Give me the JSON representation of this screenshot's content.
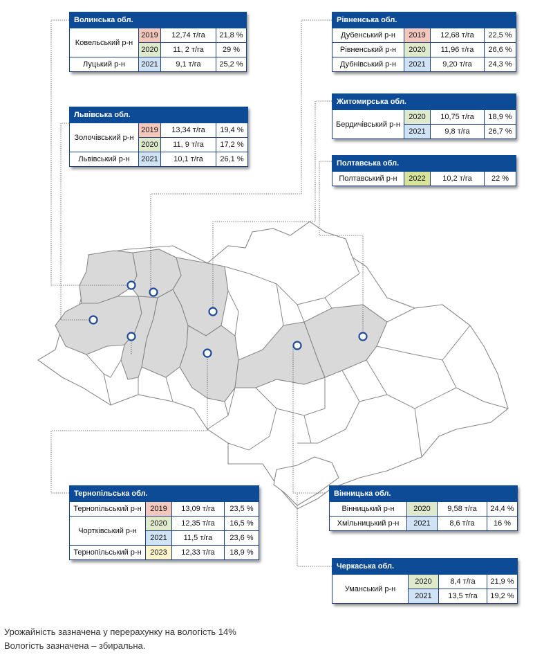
{
  "map": {
    "colors": {
      "highlight": "#d9d9d9",
      "other": "#ffffff",
      "border": "#888888",
      "marker": "#1e4b9a"
    }
  },
  "cards": {
    "volyn": {
      "title": "Волинська обл.",
      "rows": [
        {
          "district": "Ковельський р-н",
          "year": "2019",
          "yield": "12,74 т/га",
          "moisture": "21,8 %"
        },
        {
          "district": "",
          "year": "2020",
          "yield": "11, 2 т/га",
          "moisture": "29 %"
        },
        {
          "district": "Луцький р-н",
          "year": "2021",
          "yield": "9,1 т/га",
          "moisture": "25,2 %"
        }
      ]
    },
    "lviv": {
      "title": "Львівська обл.",
      "rows": [
        {
          "district": "Золочівський р-н",
          "year": "2019",
          "yield": "13,34 т/га",
          "moisture": "19,4 %"
        },
        {
          "district": "",
          "year": "2020",
          "yield": "11, 9 т/га",
          "moisture": "17,2 %"
        },
        {
          "district": "Львівський р-н",
          "year": "2021",
          "yield": "10,1 т/га",
          "moisture": "26,1 %"
        }
      ]
    },
    "rivne": {
      "title": "Рівненська обл.",
      "rows": [
        {
          "district": "Дубенський р-н",
          "year": "2019",
          "yield": "12,68 т/га",
          "moisture": "22,5 %"
        },
        {
          "district": "Рівненський р-н",
          "year": "2020",
          "yield": "11,96 т/га",
          "moisture": "26,6 %"
        },
        {
          "district": "Дубнівський р-н",
          "year": "2021",
          "yield": "9,20 т/га",
          "moisture": "24,3 %"
        }
      ]
    },
    "zhytomyr": {
      "title": "Житомирська обл.",
      "rows": [
        {
          "district": "Бердичівський р-н",
          "year": "2020",
          "yield": "10,75 т/га",
          "moisture": "18,9 %"
        },
        {
          "district": "",
          "year": "2021",
          "yield": "9,8 т/га",
          "moisture": "26,7 %"
        }
      ]
    },
    "poltava": {
      "title": "Полтавська обл.",
      "rows": [
        {
          "district": "Полтавський р-н",
          "year": "2022",
          "yield": "10,2 т/га",
          "moisture": "22 %"
        }
      ]
    },
    "ternopil": {
      "title": "Тернопільська обл.",
      "rows": [
        {
          "district": "Тернопільський р-н",
          "year": "2019",
          "yield": "13,09 т/га",
          "moisture": "23,5 %"
        },
        {
          "district": "Чортківський р-н",
          "year": "2020",
          "yield": "12,35 т/га",
          "moisture": "16,5 %"
        },
        {
          "district": "",
          "year": "2021",
          "yield": "11,5 т/га",
          "moisture": "23,6 %"
        },
        {
          "district": "Тернопільський р-н",
          "year": "2023",
          "yield": "12,33 т/га",
          "moisture": "18,9 %"
        }
      ]
    },
    "vinnytsia": {
      "title": "Вінницька обл.",
      "rows": [
        {
          "district": "Вінницький р-н",
          "year": "2020",
          "yield": "9,58 т/га",
          "moisture": "24,4 %"
        },
        {
          "district": "Хмільницький р-н",
          "year": "2021",
          "yield": "8,6 т/га",
          "moisture": "16 %"
        }
      ]
    },
    "cherkasy": {
      "title": "Черкаська обл.",
      "rows": [
        {
          "district": "Уманський р-н",
          "year": "2020",
          "yield": "8,4 т/га",
          "moisture": "21,9 %"
        },
        {
          "district": "",
          "year": "2021",
          "yield": "13,5 т/га",
          "moisture": "19,2 %"
        }
      ]
    }
  },
  "notes": {
    "line1": "Урожайність зазначена у перерахунку на вологість 14%",
    "line2": "Вологість зазначена – збиральна."
  }
}
